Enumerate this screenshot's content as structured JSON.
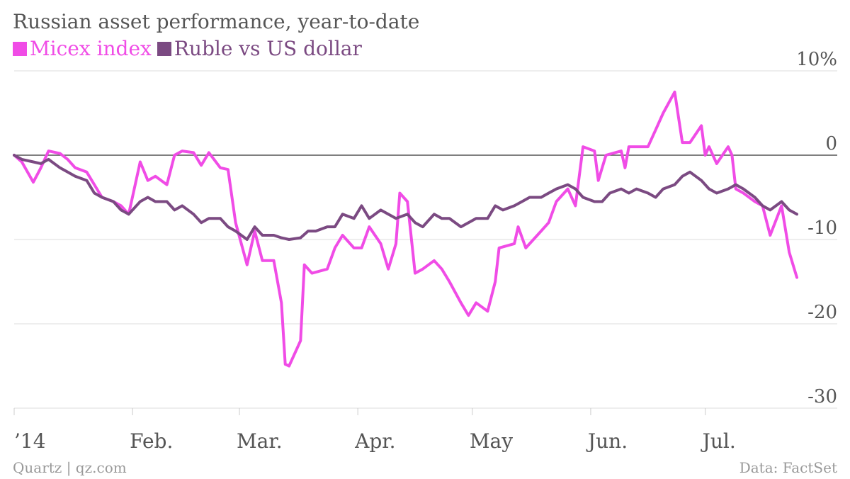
{
  "chart_data": {
    "type": "line",
    "title": "Russian asset performance, year-to-date",
    "x_ticks": [
      "’14",
      "Feb.",
      "Mar.",
      "Apr.",
      "May",
      "Jun.",
      "Jul."
    ],
    "y_ticks": [
      "10%",
      "0",
      "-10",
      "-20",
      "-30"
    ],
    "y_tick_values": [
      10,
      0,
      -10,
      -20,
      -30
    ],
    "ylim": [
      -30,
      10
    ],
    "xlim": [
      "2014-01-01",
      "2014-07-25"
    ],
    "grid": true,
    "legend_position": "top-left",
    "series": [
      {
        "name": "Micex index",
        "color": "#f04ce6",
        "points": [
          [
            "2014-01-01",
            0
          ],
          [
            "2014-01-03",
            -0.8
          ],
          [
            "2014-01-06",
            -3.2
          ],
          [
            "2014-01-08",
            -1.5
          ],
          [
            "2014-01-10",
            0.5
          ],
          [
            "2014-01-13",
            0.2
          ],
          [
            "2014-01-15",
            -0.5
          ],
          [
            "2014-01-17",
            -1.5
          ],
          [
            "2014-01-20",
            -2.0
          ],
          [
            "2014-01-22",
            -3.5
          ],
          [
            "2014-01-24",
            -5.0
          ],
          [
            "2014-01-27",
            -5.5
          ],
          [
            "2014-01-29",
            -6.0
          ],
          [
            "2014-01-31",
            -7.0
          ],
          [
            "2014-02-03",
            -0.8
          ],
          [
            "2014-02-05",
            -3.0
          ],
          [
            "2014-02-07",
            -2.5
          ],
          [
            "2014-02-10",
            -3.5
          ],
          [
            "2014-02-12",
            0.0
          ],
          [
            "2014-02-14",
            0.5
          ],
          [
            "2014-02-17",
            0.3
          ],
          [
            "2014-02-19",
            -1.2
          ],
          [
            "2014-02-21",
            0.3
          ],
          [
            "2014-02-24",
            -1.5
          ],
          [
            "2014-02-26",
            -1.7
          ],
          [
            "2014-02-28",
            -8.0
          ],
          [
            "2014-03-03",
            -13.0
          ],
          [
            "2014-03-05",
            -9.0
          ],
          [
            "2014-03-07",
            -12.5
          ],
          [
            "2014-03-10",
            -12.5
          ],
          [
            "2014-03-12",
            -17.5
          ],
          [
            "2014-03-13",
            -24.8
          ],
          [
            "2014-03-14",
            -25.0
          ],
          [
            "2014-03-17",
            -22.0
          ],
          [
            "2014-03-18",
            -13.0
          ],
          [
            "2014-03-20",
            -14.0
          ],
          [
            "2014-03-24",
            -13.5
          ],
          [
            "2014-03-26",
            -11.0
          ],
          [
            "2014-03-28",
            -9.5
          ],
          [
            "2014-03-31",
            -11.0
          ],
          [
            "2014-04-02",
            -11.0
          ],
          [
            "2014-04-04",
            -8.5
          ],
          [
            "2014-04-07",
            -10.5
          ],
          [
            "2014-04-09",
            -13.5
          ],
          [
            "2014-04-11",
            -10.5
          ],
          [
            "2014-04-12",
            -4.5
          ],
          [
            "2014-04-14",
            -5.5
          ],
          [
            "2014-04-16",
            -14.0
          ],
          [
            "2014-04-18",
            -13.5
          ],
          [
            "2014-04-21",
            -12.5
          ],
          [
            "2014-04-23",
            -13.5
          ],
          [
            "2014-04-25",
            -15.0
          ],
          [
            "2014-04-28",
            -17.5
          ],
          [
            "2014-04-30",
            -19.0
          ],
          [
            "2014-05-02",
            -17.5
          ],
          [
            "2014-05-05",
            -18.5
          ],
          [
            "2014-05-07",
            -15.0
          ],
          [
            "2014-05-08",
            -11.0
          ],
          [
            "2014-05-12",
            -10.5
          ],
          [
            "2014-05-13",
            -8.5
          ],
          [
            "2014-05-15",
            -11.0
          ],
          [
            "2014-05-19",
            -9.0
          ],
          [
            "2014-05-21",
            -8.0
          ],
          [
            "2014-05-23",
            -5.5
          ],
          [
            "2014-05-26",
            -4.0
          ],
          [
            "2014-05-28",
            -6.0
          ],
          [
            "2014-05-30",
            1.0
          ],
          [
            "2014-06-02",
            0.5
          ],
          [
            "2014-06-03",
            -3.0
          ],
          [
            "2014-06-05",
            0.0
          ],
          [
            "2014-06-09",
            0.5
          ],
          [
            "2014-06-10",
            -1.5
          ],
          [
            "2014-06-11",
            1.0
          ],
          [
            "2014-06-16",
            1.0
          ],
          [
            "2014-06-18",
            3.0
          ],
          [
            "2014-06-20",
            5.0
          ],
          [
            "2014-06-23",
            7.5
          ],
          [
            "2014-06-25",
            1.5
          ],
          [
            "2014-06-27",
            1.5
          ],
          [
            "2014-06-30",
            3.5
          ],
          [
            "2014-07-01",
            0.0
          ],
          [
            "2014-07-02",
            1.0
          ],
          [
            "2014-07-04",
            -1.0
          ],
          [
            "2014-07-07",
            1.0
          ],
          [
            "2014-07-08",
            0.0
          ],
          [
            "2014-07-09",
            -4.0
          ],
          [
            "2014-07-11",
            -4.5
          ],
          [
            "2014-07-14",
            -5.5
          ],
          [
            "2014-07-16",
            -6.0
          ],
          [
            "2014-07-18",
            -9.5
          ],
          [
            "2014-07-21",
            -6.0
          ],
          [
            "2014-07-23",
            -11.5
          ],
          [
            "2014-07-25",
            -14.5
          ]
        ]
      },
      {
        "name": "Ruble vs US dollar",
        "color": "#7b4a82",
        "points": [
          [
            "2014-01-01",
            0
          ],
          [
            "2014-01-03",
            -0.5
          ],
          [
            "2014-01-06",
            -0.8
          ],
          [
            "2014-01-08",
            -1.0
          ],
          [
            "2014-01-10",
            -0.5
          ],
          [
            "2014-01-13",
            -1.5
          ],
          [
            "2014-01-15",
            -2.0
          ],
          [
            "2014-01-17",
            -2.5
          ],
          [
            "2014-01-20",
            -3.0
          ],
          [
            "2014-01-22",
            -4.5
          ],
          [
            "2014-01-24",
            -5.0
          ],
          [
            "2014-01-27",
            -5.5
          ],
          [
            "2014-01-29",
            -6.5
          ],
          [
            "2014-01-31",
            -7.0
          ],
          [
            "2014-02-03",
            -5.5
          ],
          [
            "2014-02-05",
            -5.0
          ],
          [
            "2014-02-07",
            -5.5
          ],
          [
            "2014-02-10",
            -5.5
          ],
          [
            "2014-02-12",
            -6.5
          ],
          [
            "2014-02-14",
            -6.0
          ],
          [
            "2014-02-17",
            -7.0
          ],
          [
            "2014-02-19",
            -8.0
          ],
          [
            "2014-02-21",
            -7.5
          ],
          [
            "2014-02-24",
            -7.5
          ],
          [
            "2014-02-26",
            -8.5
          ],
          [
            "2014-02-28",
            -9.0
          ],
          [
            "2014-03-03",
            -10.0
          ],
          [
            "2014-03-05",
            -8.5
          ],
          [
            "2014-03-07",
            -9.5
          ],
          [
            "2014-03-10",
            -9.5
          ],
          [
            "2014-03-12",
            -9.8
          ],
          [
            "2014-03-14",
            -10.0
          ],
          [
            "2014-03-17",
            -9.8
          ],
          [
            "2014-03-19",
            -9.0
          ],
          [
            "2014-03-21",
            -9.0
          ],
          [
            "2014-03-24",
            -8.5
          ],
          [
            "2014-03-26",
            -8.5
          ],
          [
            "2014-03-28",
            -7.0
          ],
          [
            "2014-03-31",
            -7.5
          ],
          [
            "2014-04-02",
            -6.0
          ],
          [
            "2014-04-04",
            -7.5
          ],
          [
            "2014-04-07",
            -6.5
          ],
          [
            "2014-04-09",
            -7.0
          ],
          [
            "2014-04-11",
            -7.5
          ],
          [
            "2014-04-14",
            -7.0
          ],
          [
            "2014-04-16",
            -8.0
          ],
          [
            "2014-04-18",
            -8.5
          ],
          [
            "2014-04-21",
            -7.0
          ],
          [
            "2014-04-23",
            -7.5
          ],
          [
            "2014-04-25",
            -7.5
          ],
          [
            "2014-04-28",
            -8.5
          ],
          [
            "2014-04-30",
            -8.0
          ],
          [
            "2014-05-02",
            -7.5
          ],
          [
            "2014-05-05",
            -7.5
          ],
          [
            "2014-05-07",
            -6.0
          ],
          [
            "2014-05-09",
            -6.5
          ],
          [
            "2014-05-12",
            -6.0
          ],
          [
            "2014-05-14",
            -5.5
          ],
          [
            "2014-05-16",
            -5.0
          ],
          [
            "2014-05-19",
            -5.0
          ],
          [
            "2014-05-21",
            -4.5
          ],
          [
            "2014-05-23",
            -4.0
          ],
          [
            "2014-05-26",
            -3.5
          ],
          [
            "2014-05-28",
            -4.0
          ],
          [
            "2014-05-30",
            -5.0
          ],
          [
            "2014-06-02",
            -5.5
          ],
          [
            "2014-06-04",
            -5.5
          ],
          [
            "2014-06-06",
            -4.5
          ],
          [
            "2014-06-09",
            -4.0
          ],
          [
            "2014-06-11",
            -4.5
          ],
          [
            "2014-06-13",
            -4.0
          ],
          [
            "2014-06-16",
            -4.5
          ],
          [
            "2014-06-18",
            -5.0
          ],
          [
            "2014-06-20",
            -4.0
          ],
          [
            "2014-06-23",
            -3.5
          ],
          [
            "2014-06-25",
            -2.5
          ],
          [
            "2014-06-27",
            -2.0
          ],
          [
            "2014-06-30",
            -3.0
          ],
          [
            "2014-07-02",
            -4.0
          ],
          [
            "2014-07-04",
            -4.5
          ],
          [
            "2014-07-07",
            -4.0
          ],
          [
            "2014-07-09",
            -3.5
          ],
          [
            "2014-07-11",
            -4.0
          ],
          [
            "2014-07-14",
            -5.0
          ],
          [
            "2014-07-16",
            -6.0
          ],
          [
            "2014-07-18",
            -6.5
          ],
          [
            "2014-07-21",
            -5.5
          ],
          [
            "2014-07-23",
            -6.5
          ],
          [
            "2014-07-25",
            -7.0
          ]
        ]
      }
    ]
  },
  "footer": {
    "credit": "Quartz | qz.com",
    "source": "Data: FactSet"
  }
}
